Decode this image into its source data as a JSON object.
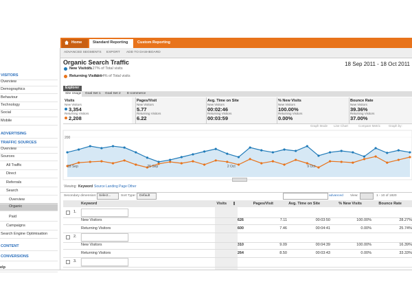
{
  "nav": {
    "tabs": [
      "Home",
      "Standard Reporting",
      "Custom Reporting"
    ]
  },
  "toolbar": [
    "ADVANCED SEGMENTS",
    "EXPORT",
    "ADD TO DASHBOARD"
  ],
  "sidebar": {
    "items": [
      "VISITORS",
      "Overview",
      "Demographics",
      "Behaviour",
      "Technology",
      "Social",
      "Mobile",
      "ADVERTISING",
      "TRAFFIC SOURCES",
      "Overview",
      "Sources",
      "All Traffic",
      "Direct",
      "Referrals",
      "Search",
      "Overview",
      "Organic",
      "Paid",
      "Campaigns",
      "Search Engine Optimisation",
      "CONTENT",
      "CONVERSIONS",
      "elp"
    ]
  },
  "report": {
    "title": "Organic Search Traffic",
    "date_range": "18 Sep 2011 - 18 Oct 2011",
    "segments": [
      {
        "name": "New Visitors",
        "share": "35.27% of Total visits"
      },
      {
        "name": "Returning Visitors",
        "share": "18.64% of Total visits"
      }
    ]
  },
  "tabs": {
    "main": "Explorer",
    "sub": [
      "Site Usage",
      "Goal Set 1",
      "Goal Set 2",
      "E-commerce"
    ]
  },
  "metrics": [
    {
      "label": "Visits",
      "rows": [
        [
          "New Visitors",
          "3,354"
        ],
        [
          "Returning Visitors",
          "2,208"
        ]
      ]
    },
    {
      "label": "Pages/Visit",
      "rows": [
        [
          "New Visitors",
          "5.77"
        ],
        [
          "Returning Visitors",
          "6.22"
        ]
      ]
    },
    {
      "label": "Avg. Time on Site",
      "rows": [
        [
          "New Visitors",
          "00:02:46"
        ],
        [
          "Returning Visitors",
          "00:03:59"
        ]
      ]
    },
    {
      "label": "% New Visits",
      "rows": [
        [
          "New Visitors",
          "100.00%"
        ],
        [
          "Returning Visitors",
          "0.00%"
        ]
      ]
    },
    {
      "label": "Bounce Rate",
      "rows": [
        [
          "New Visitors",
          "39.36%"
        ],
        [
          "Returning Visitors",
          "37.00%"
        ]
      ]
    }
  ],
  "graph_options": [
    "Graph Mode",
    "Line Chart",
    "Compare Metric",
    "Graph by:"
  ],
  "chart_data": {
    "type": "line",
    "categories": [
      "18 Sep",
      null,
      null,
      null,
      null,
      null,
      null,
      "25 Sep",
      null,
      null,
      null,
      null,
      null,
      null,
      "2 Oct",
      null,
      null,
      null,
      null,
      null,
      null,
      "9 Oct",
      null,
      null,
      null,
      null,
      null,
      null,
      null,
      null,
      null
    ],
    "series": [
      {
        "color": "#1f7ab8",
        "values": [
          124,
          138,
          155,
          145,
          155,
          148,
          124,
          97,
          76,
          86,
          100,
          114,
          128,
          141,
          117,
          100,
          148,
          134,
          124,
          138,
          131,
          155,
          107,
          124,
          131,
          124,
          103,
          145,
          121,
          134,
          124
        ]
      },
      {
        "color": "#e8731b",
        "values": [
          55,
          72,
          76,
          79,
          69,
          83,
          62,
          48,
          66,
          76,
          69,
          79,
          62,
          83,
          76,
          62,
          90,
          69,
          79,
          62,
          86,
          69,
          48,
          79,
          76,
          72,
          90,
          103,
          72,
          86,
          100
        ]
      }
    ],
    "ylim": [
      0,
      200
    ],
    "yticks": [
      200
    ],
    "grid": true
  },
  "viewing": {
    "label": "Viewing:",
    "options": [
      "Keyword",
      "Source",
      "Landing Page",
      "Other"
    ]
  },
  "controls": {
    "secondary": "Secondary dimension:",
    "select": "Select...",
    "sort": "Sort Type:",
    "sort_value": "Default",
    "advanced": "advanced",
    "view": "View:",
    "pager": "1 - 10 of 1820"
  },
  "table": {
    "headers": [
      "Keyword",
      "Visits",
      "Pages/Visit",
      "Avg. Time on Site",
      "% New Visits",
      "Bounce Rate"
    ],
    "groups": [
      {
        "index": "1.",
        "rows": [
          [
            "New Visitors",
            "626",
            "7.11",
            "00:03:50",
            "100.00%",
            "28.27%"
          ],
          [
            "Returning Visitors",
            "600",
            "7.46",
            "00:04:41",
            "0.00%",
            "25.74%"
          ]
        ]
      },
      {
        "index": "2.",
        "rows": [
          [
            "New Visitors",
            "310",
            "9.09",
            "00:04:39",
            "100.00%",
            "16.39%"
          ],
          [
            "Returning Visitors",
            "264",
            "8.50",
            "00:03:43",
            "0.00%",
            "33.33%"
          ]
        ]
      },
      {
        "index": "3.",
        "rows": []
      }
    ]
  }
}
